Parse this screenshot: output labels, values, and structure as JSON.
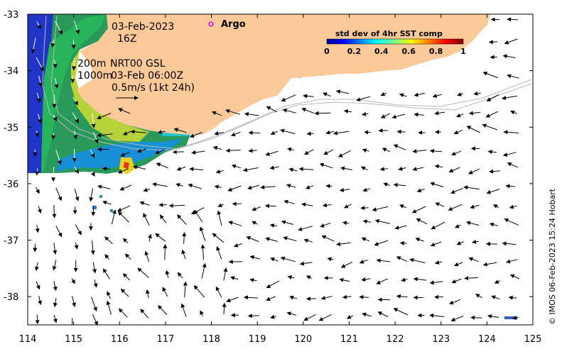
{
  "map": {
    "x_range": [
      114,
      125
    ],
    "y_range": [
      -38.5,
      -33
    ],
    "x_ticks": [
      "114",
      "115",
      "116",
      "117",
      "118",
      "119",
      "120",
      "121",
      "122",
      "123",
      "124",
      "125"
    ],
    "y_ticks": [
      "-33",
      "-34",
      "-35",
      "-36",
      "-37",
      "-38"
    ],
    "land_color": "#fcc999",
    "ocean_color": "#ffffff"
  },
  "annotations": {
    "date": "03-Feb-2023",
    "hour": "16Z",
    "depth_200": "200m",
    "depth_1000": "1000m",
    "nrt": "NRT00 GSL",
    "nrt_time": "03-Feb 06:00Z",
    "scale": "0.5m/s (1kt 24h)"
  },
  "legend": {
    "argo_label": "Argo",
    "argo_icon": "circle-marker",
    "argo_color": "#e000e0",
    "colorbar_title": "std dev of 4hr SST comp",
    "colorbar_ticks": [
      "0",
      "0.2",
      "0.4",
      "0.6",
      "0.8",
      "1"
    ],
    "colormap": "jet"
  },
  "credit": "© IMOS 06-Feb-2023 15:24 Hobart"
}
